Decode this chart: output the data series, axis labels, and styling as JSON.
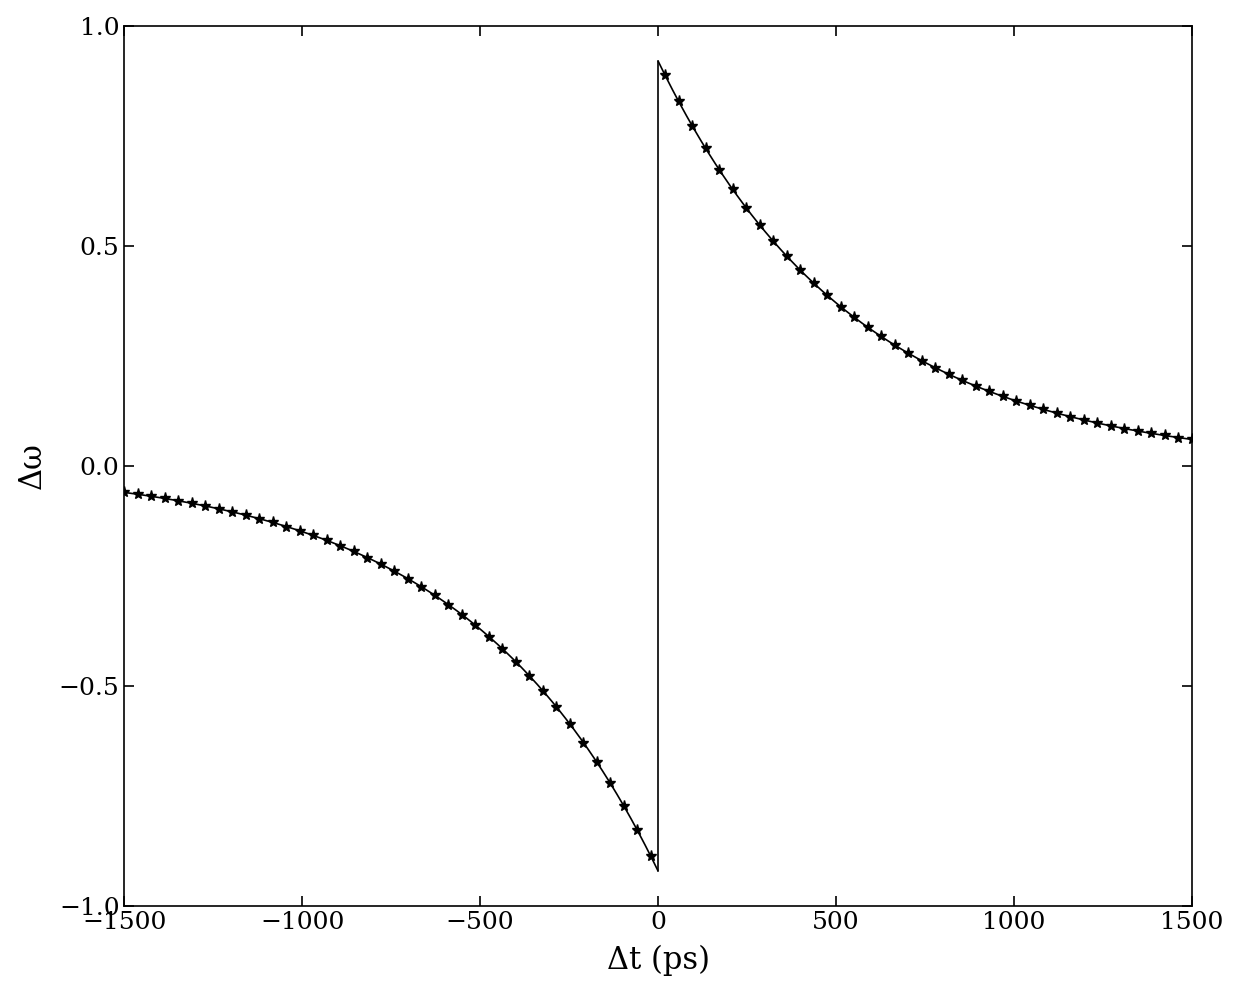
{
  "xlabel": "Δt (ps)",
  "ylabel": "Δω",
  "xlim": [
    -1500,
    1500
  ],
  "ylim": [
    -1,
    1
  ],
  "xticks": [
    -1500,
    -1000,
    -500,
    0,
    500,
    1000,
    1500
  ],
  "yticks": [
    -1,
    -0.5,
    0,
    0.5,
    1
  ],
  "background_color": "#ffffff",
  "line_color": "#000000",
  "marker": "*",
  "markersize": 8,
  "linewidth": 1.2,
  "tau": 550,
  "peak": 0.92,
  "n_markers_each": 40
}
